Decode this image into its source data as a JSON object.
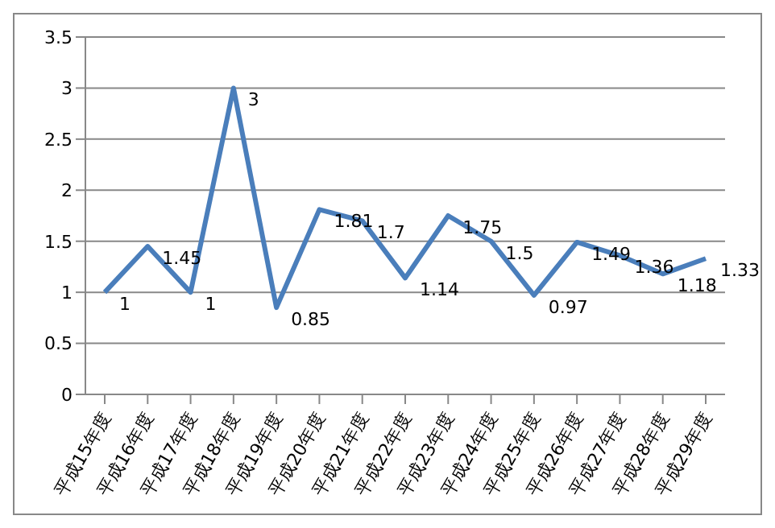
{
  "chart_data": {
    "type": "line",
    "categories": [
      "平成15年度",
      "平成16年度",
      "平成17年度",
      "平成18年度",
      "平成19年度",
      "平成20年度",
      "平成21年度",
      "平成22年度",
      "平成23年度",
      "平成24年度",
      "平成25年度",
      "平成26年度",
      "平成27年度",
      "平成28年度",
      "平成29年度"
    ],
    "series": [
      {
        "color": "#4a7ebb",
        "values": [
          1,
          1.45,
          1,
          3,
          0.85,
          1.81,
          1.7,
          1.14,
          1.75,
          1.5,
          0.97,
          1.49,
          1.36,
          1.18,
          1.33
        ]
      }
    ],
    "ylim": [
      0,
      3.5
    ],
    "yticks": [
      0,
      0.5,
      1,
      1.5,
      2,
      2.5,
      3,
      3.5
    ],
    "grid": "y",
    "legend": false,
    "marker": "none",
    "line_style": "solid",
    "data_labels": true
  }
}
